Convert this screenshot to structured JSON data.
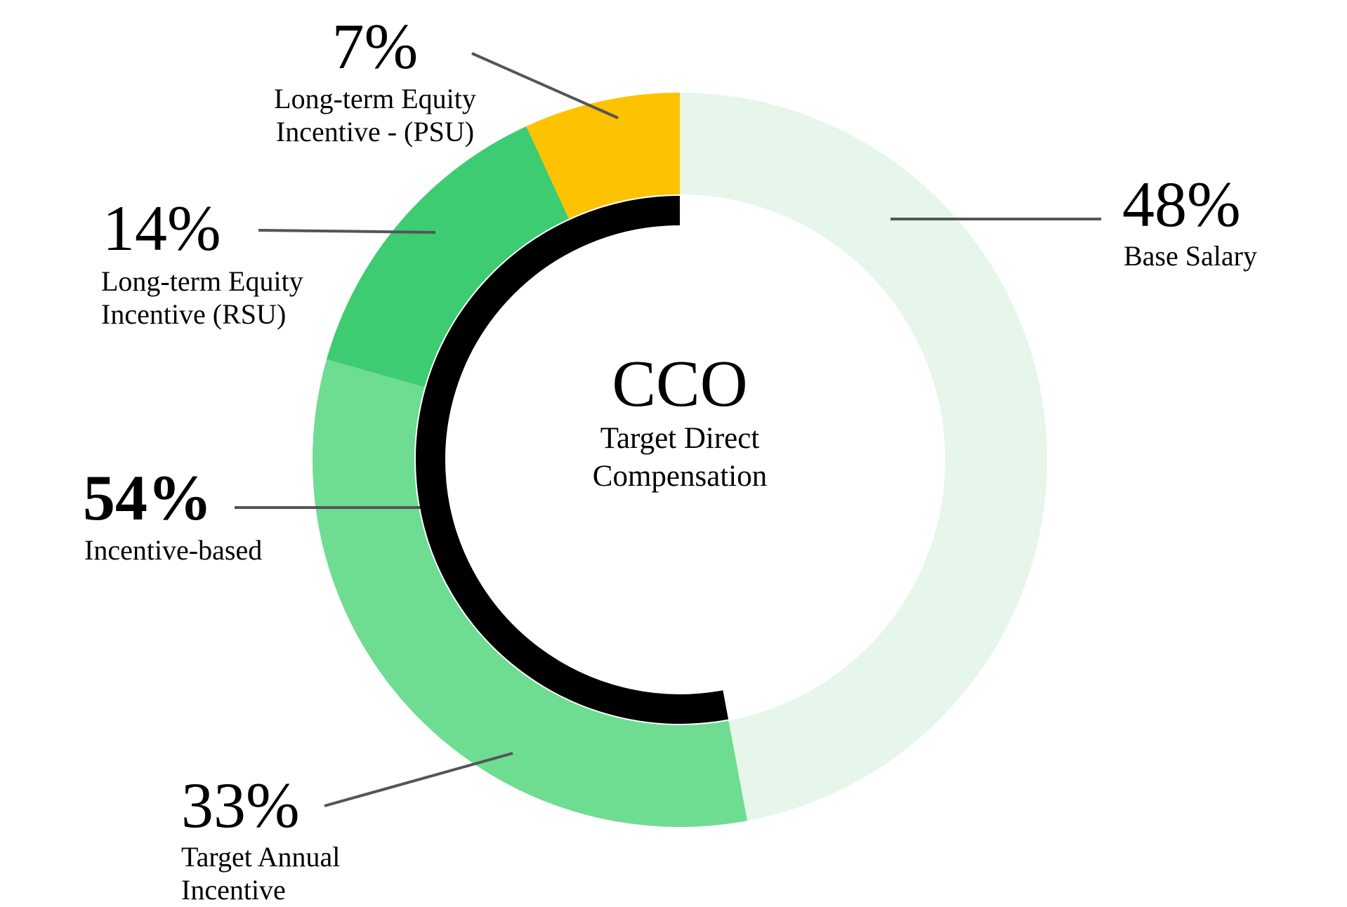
{
  "chart_data": {
    "type": "pie",
    "center_label": "CCO",
    "center_sublabel": [
      "Target Direct",
      "Compensation"
    ],
    "slices": [
      {
        "label_lines": [
          "Base Salary"
        ],
        "value": 48,
        "display": "48%",
        "color": "#E6F6EA"
      },
      {
        "label_lines": [
          "Target Annual",
          "Incentive"
        ],
        "value": 33,
        "display": "33%",
        "color": "#6EDD91"
      },
      {
        "label_lines": [
          "Long-term Equity",
          "Incentive (RSU)"
        ],
        "value": 14,
        "display": "14%",
        "color": "#3ECC72"
      },
      {
        "label_lines": [
          "Long-term Equity",
          "Incentive - (PSU)"
        ],
        "value": 7,
        "display": "7%",
        "color": "#FDC200"
      }
    ],
    "group_arc": {
      "label": "Incentive-based",
      "value": 54,
      "display": "54%",
      "color": "#000000"
    },
    "leader_color": "#555555"
  }
}
